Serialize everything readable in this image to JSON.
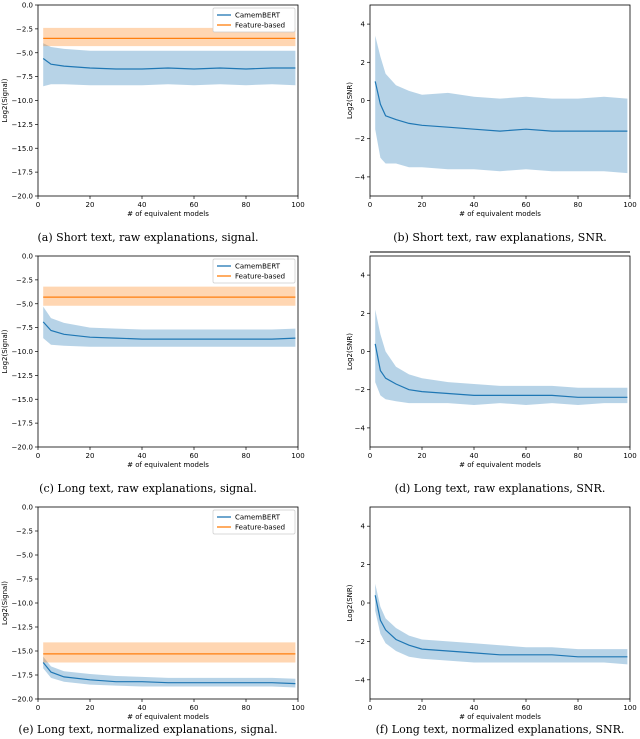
{
  "chart_data": [
    {
      "type": "line",
      "panel": "a",
      "caption": "(a) Short text, raw explanations, signal.",
      "xlabel": "# of equivalent models",
      "ylabel": "Log2(Signal)",
      "xlim": [
        0,
        100
      ],
      "ylim": [
        -20,
        0
      ],
      "xticks": [
        0,
        20,
        40,
        60,
        80,
        100
      ],
      "xtick_labels": [
        "0",
        "20",
        "40",
        "60",
        "80",
        "100"
      ],
      "yticks": [
        0,
        -2.5,
        -5,
        -7.5,
        -10,
        -12.5,
        -15,
        -17.5,
        -20
      ],
      "ytick_labels": [
        "0.0",
        "−2.5",
        "−5.0",
        "−7.5",
        "−10.0",
        "−12.5",
        "−15.0",
        "−17.5",
        "−20.0"
      ],
      "legend": [
        "CamemBERT",
        "Feature-based"
      ],
      "series": [
        {
          "name": "CamemBERT",
          "color": "#1f77b4",
          "x": [
            2,
            5,
            10,
            20,
            30,
            40,
            50,
            60,
            70,
            80,
            90,
            99
          ],
          "y": [
            -5.6,
            -6.2,
            -6.4,
            -6.6,
            -6.7,
            -6.7,
            -6.6,
            -6.7,
            -6.6,
            -6.7,
            -6.6,
            -6.6
          ],
          "lower": [
            -8.5,
            -8.3,
            -8.3,
            -8.4,
            -8.4,
            -8.4,
            -8.3,
            -8.4,
            -8.3,
            -8.4,
            -8.3,
            -8.4
          ],
          "upper": [
            -4.0,
            -4.4,
            -4.6,
            -4.8,
            -4.8,
            -4.8,
            -4.8,
            -4.8,
            -4.8,
            -4.8,
            -4.8,
            -4.8
          ]
        },
        {
          "name": "Feature-based",
          "color": "#ff7f0e",
          "x": [
            2,
            99
          ],
          "y": [
            -3.5,
            -3.5
          ],
          "lower": [
            -4.3,
            -4.3
          ],
          "upper": [
            -2.4,
            -2.4
          ]
        }
      ]
    },
    {
      "type": "line",
      "panel": "b",
      "caption": "(b) Short text, raw explanations, SNR.",
      "xlabel": "# of equivalent models",
      "ylabel": "Log2(SNR)",
      "xlim": [
        0,
        100
      ],
      "ylim": [
        -5,
        5
      ],
      "xticks": [
        0,
        20,
        40,
        60,
        80,
        100
      ],
      "xtick_labels": [
        "0",
        "20",
        "40",
        "60",
        "80",
        "100"
      ],
      "yticks": [
        4,
        2,
        0,
        -2,
        -4
      ],
      "ytick_labels": [
        "4",
        "2",
        "0",
        "−2",
        "−4"
      ],
      "series": [
        {
          "name": "CamemBERT",
          "color": "#1f77b4",
          "x": [
            2,
            4,
            6,
            10,
            15,
            20,
            30,
            40,
            50,
            60,
            70,
            80,
            90,
            99
          ],
          "y": [
            1.0,
            -0.2,
            -0.8,
            -1.0,
            -1.2,
            -1.3,
            -1.4,
            -1.5,
            -1.6,
            -1.5,
            -1.6,
            -1.6,
            -1.6,
            -1.6
          ],
          "lower": [
            -1.5,
            -3.0,
            -3.3,
            -3.3,
            -3.5,
            -3.5,
            -3.6,
            -3.6,
            -3.7,
            -3.6,
            -3.7,
            -3.7,
            -3.7,
            -3.8
          ],
          "upper": [
            3.4,
            2.3,
            1.4,
            0.8,
            0.5,
            0.3,
            0.4,
            0.2,
            0.1,
            0.2,
            0.1,
            0.1,
            0.2,
            0.1
          ]
        }
      ]
    },
    {
      "type": "line",
      "panel": "c",
      "caption": "(c) Long text, raw explanations, signal.",
      "xlabel": "# of equivalent models",
      "ylabel": "Log2(Signal)",
      "xlim": [
        0,
        100
      ],
      "ylim": [
        -20,
        0
      ],
      "xticks": [
        0,
        20,
        40,
        60,
        80,
        100
      ],
      "xtick_labels": [
        "0",
        "20",
        "40",
        "60",
        "80",
        "100"
      ],
      "yticks": [
        0,
        -2.5,
        -5,
        -7.5,
        -10,
        -12.5,
        -15,
        -17.5,
        -20
      ],
      "ytick_labels": [
        "0.0",
        "−2.5",
        "−5.0",
        "−7.5",
        "−10.0",
        "−12.5",
        "−15.0",
        "−17.5",
        "−20.0"
      ],
      "legend": [
        "CamemBERT",
        "Feature-based"
      ],
      "series": [
        {
          "name": "CamemBERT",
          "color": "#1f77b4",
          "x": [
            2,
            5,
            10,
            20,
            30,
            40,
            50,
            60,
            70,
            80,
            90,
            99
          ],
          "y": [
            -6.9,
            -7.8,
            -8.2,
            -8.5,
            -8.6,
            -8.7,
            -8.7,
            -8.7,
            -8.7,
            -8.7,
            -8.7,
            -8.6
          ],
          "lower": [
            -8.6,
            -9.3,
            -9.4,
            -9.5,
            -9.5,
            -9.5,
            -9.5,
            -9.5,
            -9.5,
            -9.5,
            -9.5,
            -9.5
          ],
          "upper": [
            -5.3,
            -6.5,
            -7.0,
            -7.5,
            -7.6,
            -7.7,
            -7.7,
            -7.7,
            -7.7,
            -7.7,
            -7.7,
            -7.6
          ]
        },
        {
          "name": "Feature-based",
          "color": "#ff7f0e",
          "x": [
            2,
            99
          ],
          "y": [
            -4.3,
            -4.3
          ],
          "lower": [
            -5.2,
            -5.2
          ],
          "upper": [
            -3.2,
            -3.2
          ]
        }
      ]
    },
    {
      "type": "line",
      "panel": "d",
      "caption": "(d) Long text, raw explanations, SNR.",
      "xlabel": "# of equivalent models",
      "ylabel": "Log2(SNR)",
      "xlim": [
        0,
        100
      ],
      "ylim": [
        -5,
        5
      ],
      "xticks": [
        0,
        20,
        40,
        60,
        80,
        100
      ],
      "xtick_labels": [
        "0",
        "20",
        "40",
        "60",
        "80",
        "100"
      ],
      "yticks": [
        4,
        2,
        0,
        -2,
        -4
      ],
      "ytick_labels": [
        "4",
        "2",
        "0",
        "−2",
        "−4"
      ],
      "series": [
        {
          "name": "CamemBERT",
          "color": "#1f77b4",
          "x": [
            2,
            4,
            6,
            10,
            15,
            20,
            30,
            40,
            50,
            60,
            70,
            80,
            90,
            99
          ],
          "y": [
            0.4,
            -1.0,
            -1.4,
            -1.7,
            -2.0,
            -2.1,
            -2.2,
            -2.3,
            -2.3,
            -2.3,
            -2.3,
            -2.4,
            -2.4,
            -2.4
          ],
          "lower": [
            -1.6,
            -2.3,
            -2.5,
            -2.6,
            -2.7,
            -2.7,
            -2.7,
            -2.8,
            -2.7,
            -2.8,
            -2.7,
            -2.8,
            -2.7,
            -2.7
          ],
          "upper": [
            2.2,
            0.9,
            0.0,
            -0.8,
            -1.2,
            -1.4,
            -1.6,
            -1.7,
            -1.8,
            -1.8,
            -1.8,
            -1.9,
            -1.9,
            -1.9
          ]
        }
      ]
    },
    {
      "type": "line",
      "panel": "e",
      "caption": "(e) Long text, normalized explanations, signal.",
      "xlabel": "# of equivalent models",
      "ylabel": "Log2(Signal)",
      "xlim": [
        0,
        100
      ],
      "ylim": [
        -20,
        0
      ],
      "xticks": [
        0,
        20,
        40,
        60,
        80,
        100
      ],
      "xtick_labels": [
        "0",
        "20",
        "40",
        "60",
        "80",
        "100"
      ],
      "yticks": [
        0,
        -2.5,
        -5,
        -7.5,
        -10,
        -12.5,
        -15,
        -17.5,
        -20
      ],
      "ytick_labels": [
        "0.0",
        "−2.5",
        "−5.0",
        "−7.5",
        "−10.0",
        "−12.5",
        "−15.0",
        "−17.5",
        "−20.0"
      ],
      "legend": [
        "CamemBERT",
        "Feature-based"
      ],
      "series": [
        {
          "name": "CamemBERT",
          "color": "#1f77b4",
          "x": [
            2,
            5,
            10,
            20,
            30,
            40,
            50,
            60,
            70,
            80,
            90,
            99
          ],
          "y": [
            -16.2,
            -17.2,
            -17.7,
            -18.0,
            -18.2,
            -18.2,
            -18.3,
            -18.3,
            -18.3,
            -18.3,
            -18.3,
            -18.4
          ],
          "lower": [
            -16.8,
            -17.8,
            -18.2,
            -18.5,
            -18.6,
            -18.7,
            -18.7,
            -18.7,
            -18.7,
            -18.7,
            -18.7,
            -18.8
          ],
          "upper": [
            -15.6,
            -16.6,
            -17.1,
            -17.4,
            -17.6,
            -17.7,
            -17.8,
            -17.8,
            -17.8,
            -17.8,
            -17.8,
            -17.9
          ]
        },
        {
          "name": "Feature-based",
          "color": "#ff7f0e",
          "x": [
            2,
            99
          ],
          "y": [
            -15.3,
            -15.3
          ],
          "lower": [
            -16.2,
            -16.2
          ],
          "upper": [
            -14.1,
            -14.1
          ]
        }
      ]
    },
    {
      "type": "line",
      "panel": "f",
      "caption": "(f) Long text, normalized explanations, SNR.",
      "xlabel": "# of equivalent models",
      "ylabel": "Log2(SNR)",
      "xlim": [
        0,
        100
      ],
      "ylim": [
        -5,
        5
      ],
      "xticks": [
        0,
        20,
        40,
        60,
        80,
        100
      ],
      "xtick_labels": [
        "0",
        "20",
        "40",
        "60",
        "80",
        "100"
      ],
      "yticks": [
        4,
        2,
        0,
        -2,
        -4
      ],
      "ytick_labels": [
        "4",
        "2",
        "0",
        "−2",
        "−4"
      ],
      "series": [
        {
          "name": "CamemBERT",
          "color": "#1f77b4",
          "x": [
            2,
            4,
            6,
            10,
            15,
            20,
            30,
            40,
            50,
            60,
            70,
            80,
            90,
            99
          ],
          "y": [
            0.4,
            -0.9,
            -1.4,
            -1.9,
            -2.2,
            -2.4,
            -2.5,
            -2.6,
            -2.7,
            -2.7,
            -2.7,
            -2.8,
            -2.8,
            -2.8
          ],
          "lower": [
            -0.4,
            -1.6,
            -2.1,
            -2.5,
            -2.8,
            -2.9,
            -3.0,
            -3.1,
            -3.1,
            -3.1,
            -3.1,
            -3.1,
            -3.1,
            -3.2
          ],
          "upper": [
            1.0,
            -0.2,
            -0.8,
            -1.3,
            -1.7,
            -1.9,
            -2.0,
            -2.1,
            -2.2,
            -2.3,
            -2.3,
            -2.4,
            -2.4,
            -2.4
          ]
        }
      ]
    }
  ]
}
